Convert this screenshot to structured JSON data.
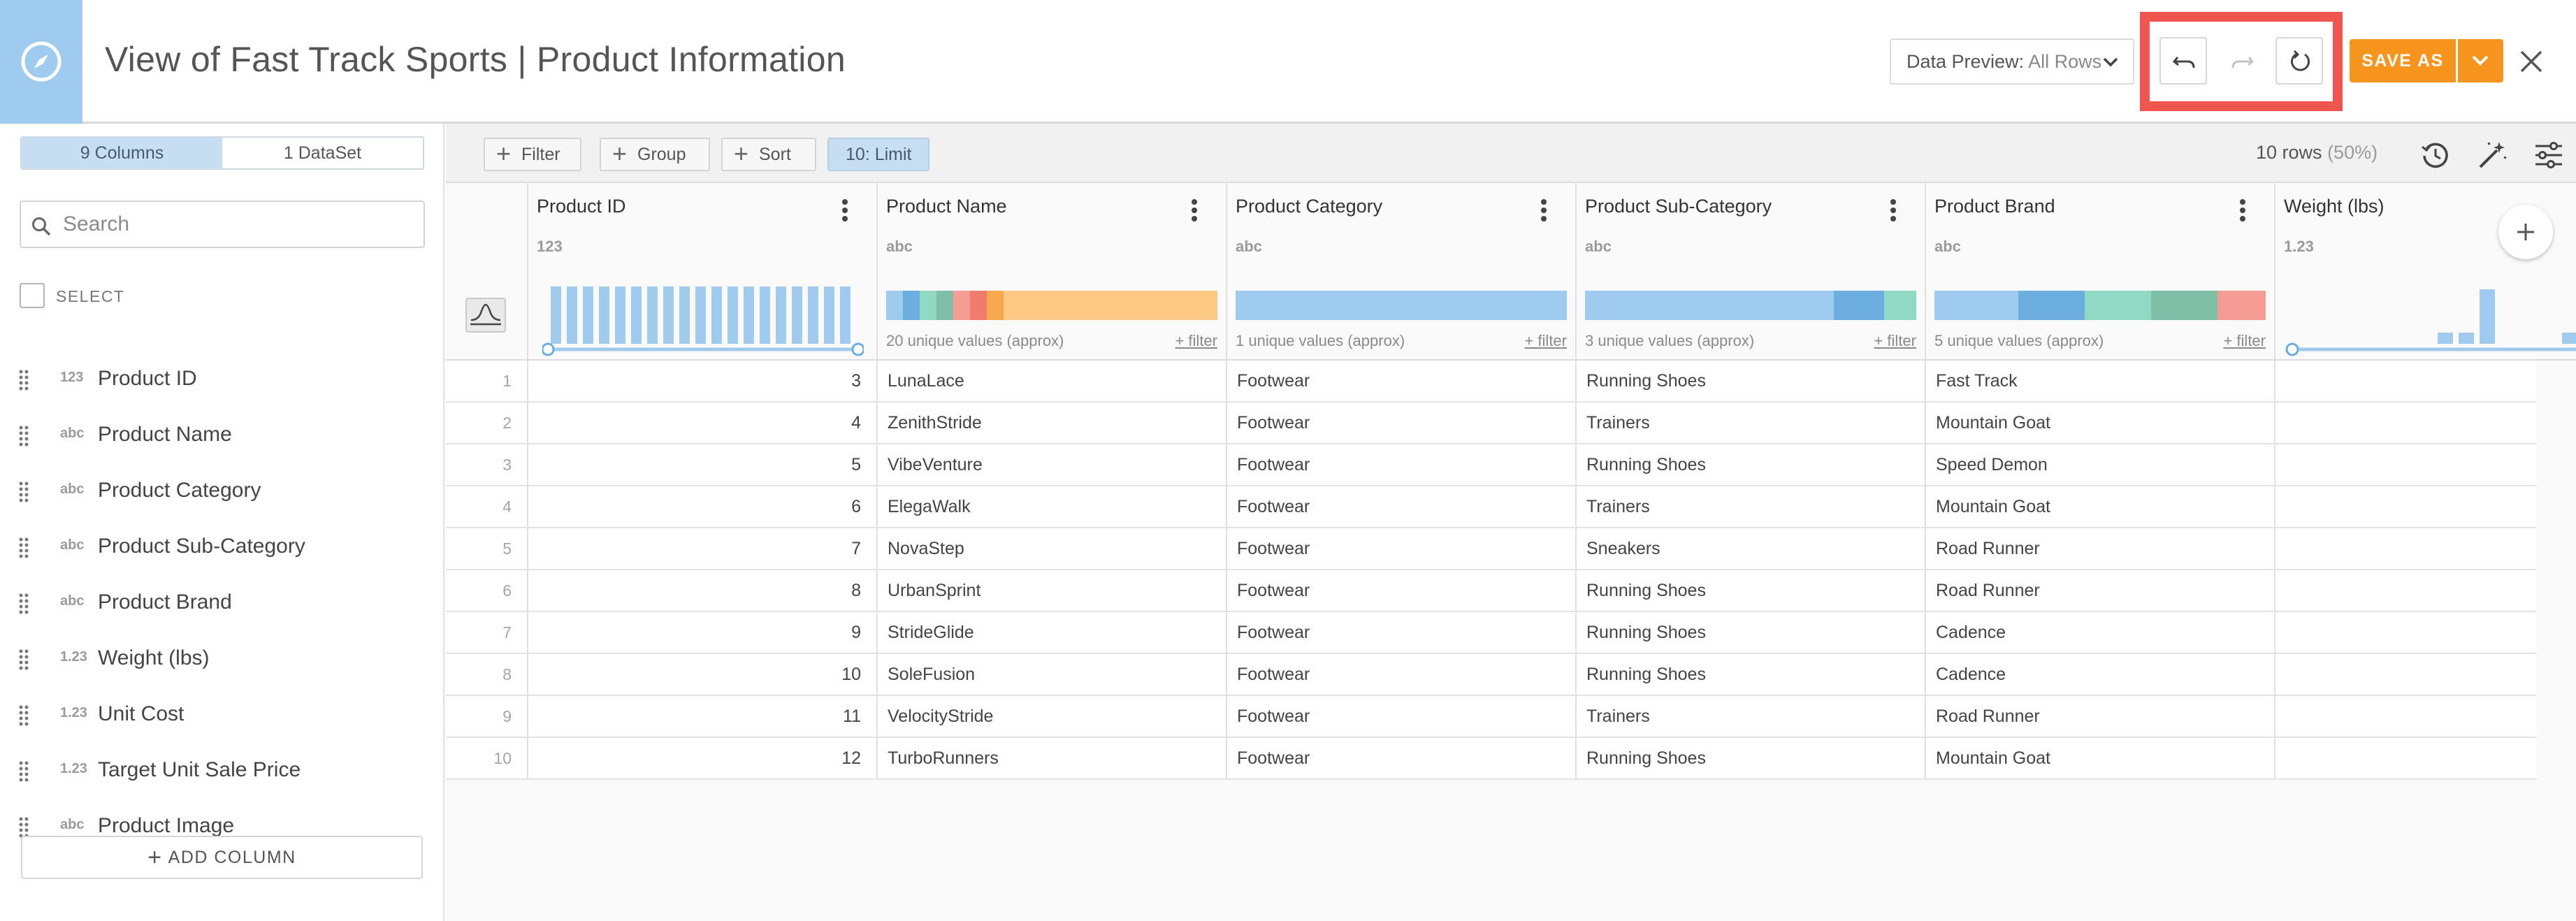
{
  "header": {
    "title": "View of Fast Track Sports | Product Information",
    "data_preview_label": "Data Preview:",
    "data_preview_value": "All Rows",
    "save_label": "SAVE AS",
    "accent_color": "#f7941d",
    "highlight_color": "#f0554f"
  },
  "sidebar": {
    "tabs": [
      "9 Columns",
      "1 DataSet"
    ],
    "active_tab": "9 Columns",
    "search_placeholder": "Search",
    "select_label": "SELECT",
    "columns": [
      {
        "type": "123",
        "name": "Product ID"
      },
      {
        "type": "abc",
        "name": "Product Name"
      },
      {
        "type": "abc",
        "name": "Product Category"
      },
      {
        "type": "abc",
        "name": "Product Sub-Category"
      },
      {
        "type": "abc",
        "name": "Product Brand"
      },
      {
        "type": "1.23",
        "name": "Weight (lbs)"
      },
      {
        "type": "1.23",
        "name": "Unit Cost"
      },
      {
        "type": "1.23",
        "name": "Target Unit Sale Price"
      },
      {
        "type": "abc",
        "name": "Product Image"
      }
    ],
    "add_column_label": "ADD COLUMN"
  },
  "toolbar": {
    "filter_label": "Filter",
    "group_label": "Group",
    "sort_label": "Sort",
    "limit_label": "10: Limit",
    "row_count": "10 rows",
    "row_pct": "(50%)"
  },
  "grid": {
    "headers": [
      {
        "name": "Product ID",
        "type": "123"
      },
      {
        "name": "Product Name",
        "type": "abc"
      },
      {
        "name": "Product Category",
        "type": "abc"
      },
      {
        "name": "Product Sub-Category",
        "type": "abc"
      },
      {
        "name": "Product Brand",
        "type": "abc"
      },
      {
        "name": "Weight (lbs)",
        "type": "1.23"
      }
    ],
    "profiles": [
      {
        "unique": "",
        "filter": ""
      },
      {
        "unique": "20 unique values (approx)",
        "filter": "+ filter"
      },
      {
        "unique": "1 unique values (approx)",
        "filter": "+ filter"
      },
      {
        "unique": "3 unique values (approx)",
        "filter": "+ filter"
      },
      {
        "unique": "5 unique values (approx)",
        "filter": "+ filter"
      },
      {
        "unique": "",
        "filter": ""
      }
    ],
    "rows": [
      {
        "n": "1",
        "id": "3",
        "name": "LunaLace",
        "cat": "Footwear",
        "sub": "Running Shoes",
        "brand": "Fast Track",
        "weight": ""
      },
      {
        "n": "2",
        "id": "4",
        "name": "ZenithStride",
        "cat": "Footwear",
        "sub": "Trainers",
        "brand": "Mountain Goat",
        "weight": ""
      },
      {
        "n": "3",
        "id": "5",
        "name": "VibeVenture",
        "cat": "Footwear",
        "sub": "Running Shoes",
        "brand": "Speed Demon",
        "weight": ""
      },
      {
        "n": "4",
        "id": "6",
        "name": "ElegaWalk",
        "cat": "Footwear",
        "sub": "Trainers",
        "brand": "Mountain Goat",
        "weight": ""
      },
      {
        "n": "5",
        "id": "7",
        "name": "NovaStep",
        "cat": "Footwear",
        "sub": "Sneakers",
        "brand": "Road Runner",
        "weight": ""
      },
      {
        "n": "6",
        "id": "8",
        "name": "UrbanSprint",
        "cat": "Footwear",
        "sub": "Running Shoes",
        "brand": "Road Runner",
        "weight": ""
      },
      {
        "n": "7",
        "id": "9",
        "name": "StrideGlide",
        "cat": "Footwear",
        "sub": "Running Shoes",
        "brand": "Cadence",
        "weight": ""
      },
      {
        "n": "8",
        "id": "10",
        "name": "SoleFusion",
        "cat": "Footwear",
        "sub": "Running Shoes",
        "brand": "Cadence",
        "weight": ""
      },
      {
        "n": "9",
        "id": "11",
        "name": "VelocityStride",
        "cat": "Footwear",
        "sub": "Trainers",
        "brand": "Road Runner",
        "weight": ""
      },
      {
        "n": "10",
        "id": "12",
        "name": "TurboRunners",
        "cat": "Footwear",
        "sub": "Running Shoes",
        "brand": "Mountain Goat",
        "weight": ""
      }
    ]
  }
}
